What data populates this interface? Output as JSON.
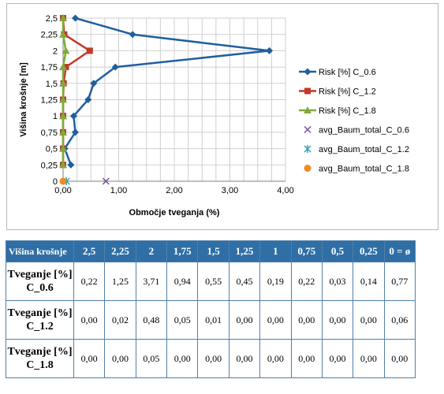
{
  "chart_data": {
    "type": "line",
    "xlabel": "Območje tveganja (%)",
    "ylabel": "Višina krošnje [m]",
    "xlim": [
      0,
      4
    ],
    "ylim": [
      0,
      2.5
    ],
    "xticks": [
      "0,00",
      "1,00",
      "2,00",
      "3,00",
      "4,00"
    ],
    "yticks": [
      "0",
      "0,25",
      "0,5",
      "0,75",
      "1",
      "1,25",
      "1,5",
      "1,75",
      "2",
      "2,25",
      "2,5"
    ],
    "grid": true,
    "legend_position": "right",
    "series": [
      {
        "name": "Risk [%] C_0.6",
        "color": "#1f5fa0",
        "marker": "diamond",
        "line": true,
        "points": [
          [
            0.22,
            2.5
          ],
          [
            1.25,
            2.25
          ],
          [
            3.71,
            2.0
          ],
          [
            0.94,
            1.75
          ],
          [
            0.55,
            1.5
          ],
          [
            0.45,
            1.25
          ],
          [
            0.19,
            1.0
          ],
          [
            0.22,
            0.75
          ],
          [
            0.03,
            0.5
          ],
          [
            0.14,
            0.25
          ]
        ]
      },
      {
        "name": "Risk [%] C_1.2",
        "color": "#c0392b",
        "marker": "square",
        "line": true,
        "points": [
          [
            0.0,
            2.5
          ],
          [
            0.02,
            2.25
          ],
          [
            0.48,
            2.0
          ],
          [
            0.05,
            1.75
          ],
          [
            0.01,
            1.5
          ],
          [
            0.0,
            1.25
          ],
          [
            0.0,
            1.0
          ],
          [
            0.0,
            0.75
          ],
          [
            0.0,
            0.5
          ],
          [
            0.0,
            0.25
          ]
        ]
      },
      {
        "name": "Risk [%] C_1.8",
        "color": "#7dab3c",
        "marker": "triangle",
        "line": true,
        "points": [
          [
            0.0,
            2.5
          ],
          [
            0.0,
            2.25
          ],
          [
            0.05,
            2.0
          ],
          [
            0.0,
            1.75
          ],
          [
            0.0,
            1.5
          ],
          [
            0.0,
            1.25
          ],
          [
            0.0,
            1.0
          ],
          [
            0.0,
            0.75
          ],
          [
            0.0,
            0.5
          ],
          [
            0.0,
            0.25
          ]
        ]
      },
      {
        "name": "avg_Baum_total_C_0.6",
        "color": "#7a4f9c",
        "marker": "x",
        "line": false,
        "points": [
          [
            0.77,
            0
          ]
        ]
      },
      {
        "name": "avg_Baum_total_C_1.2",
        "color": "#2aa6b8",
        "marker": "star",
        "line": false,
        "points": [
          [
            0.06,
            0
          ]
        ]
      },
      {
        "name": "avg_Baum_total_C_1.8",
        "color": "#f08a24",
        "marker": "circle",
        "line": false,
        "points": [
          [
            0.0,
            0
          ]
        ]
      }
    ]
  },
  "table": {
    "header_label": "Višina krošnje",
    "columns": [
      "2,5",
      "2,25",
      "2",
      "1,75",
      "1,5",
      "1,25",
      "1",
      "0,75",
      "0,5",
      "0,25",
      "0 = ø"
    ],
    "rows": [
      {
        "label_line1": "Tveganje [%]",
        "label_line2": "C_0.6",
        "values": [
          "0,22",
          "1,25",
          "3,71",
          "0,94",
          "0,55",
          "0,45",
          "0,19",
          "0,22",
          "0,03",
          "0,14",
          "0,77"
        ]
      },
      {
        "label_line1": "Tveganje [%]",
        "label_line2": "C_1.2",
        "values": [
          "0,00",
          "0,02",
          "0,48",
          "0,05",
          "0,01",
          "0,00",
          "0,00",
          "0,00",
          "0,00",
          "0,00",
          "0,06"
        ]
      },
      {
        "label_line1": "Tveganje [%]",
        "label_line2": "C_1.8",
        "values": [
          "0,00",
          "0,00",
          "0,05",
          "0,00",
          "0,00",
          "0,00",
          "0,00",
          "0,00",
          "0,00",
          "0,00",
          "0,00"
        ]
      }
    ]
  }
}
